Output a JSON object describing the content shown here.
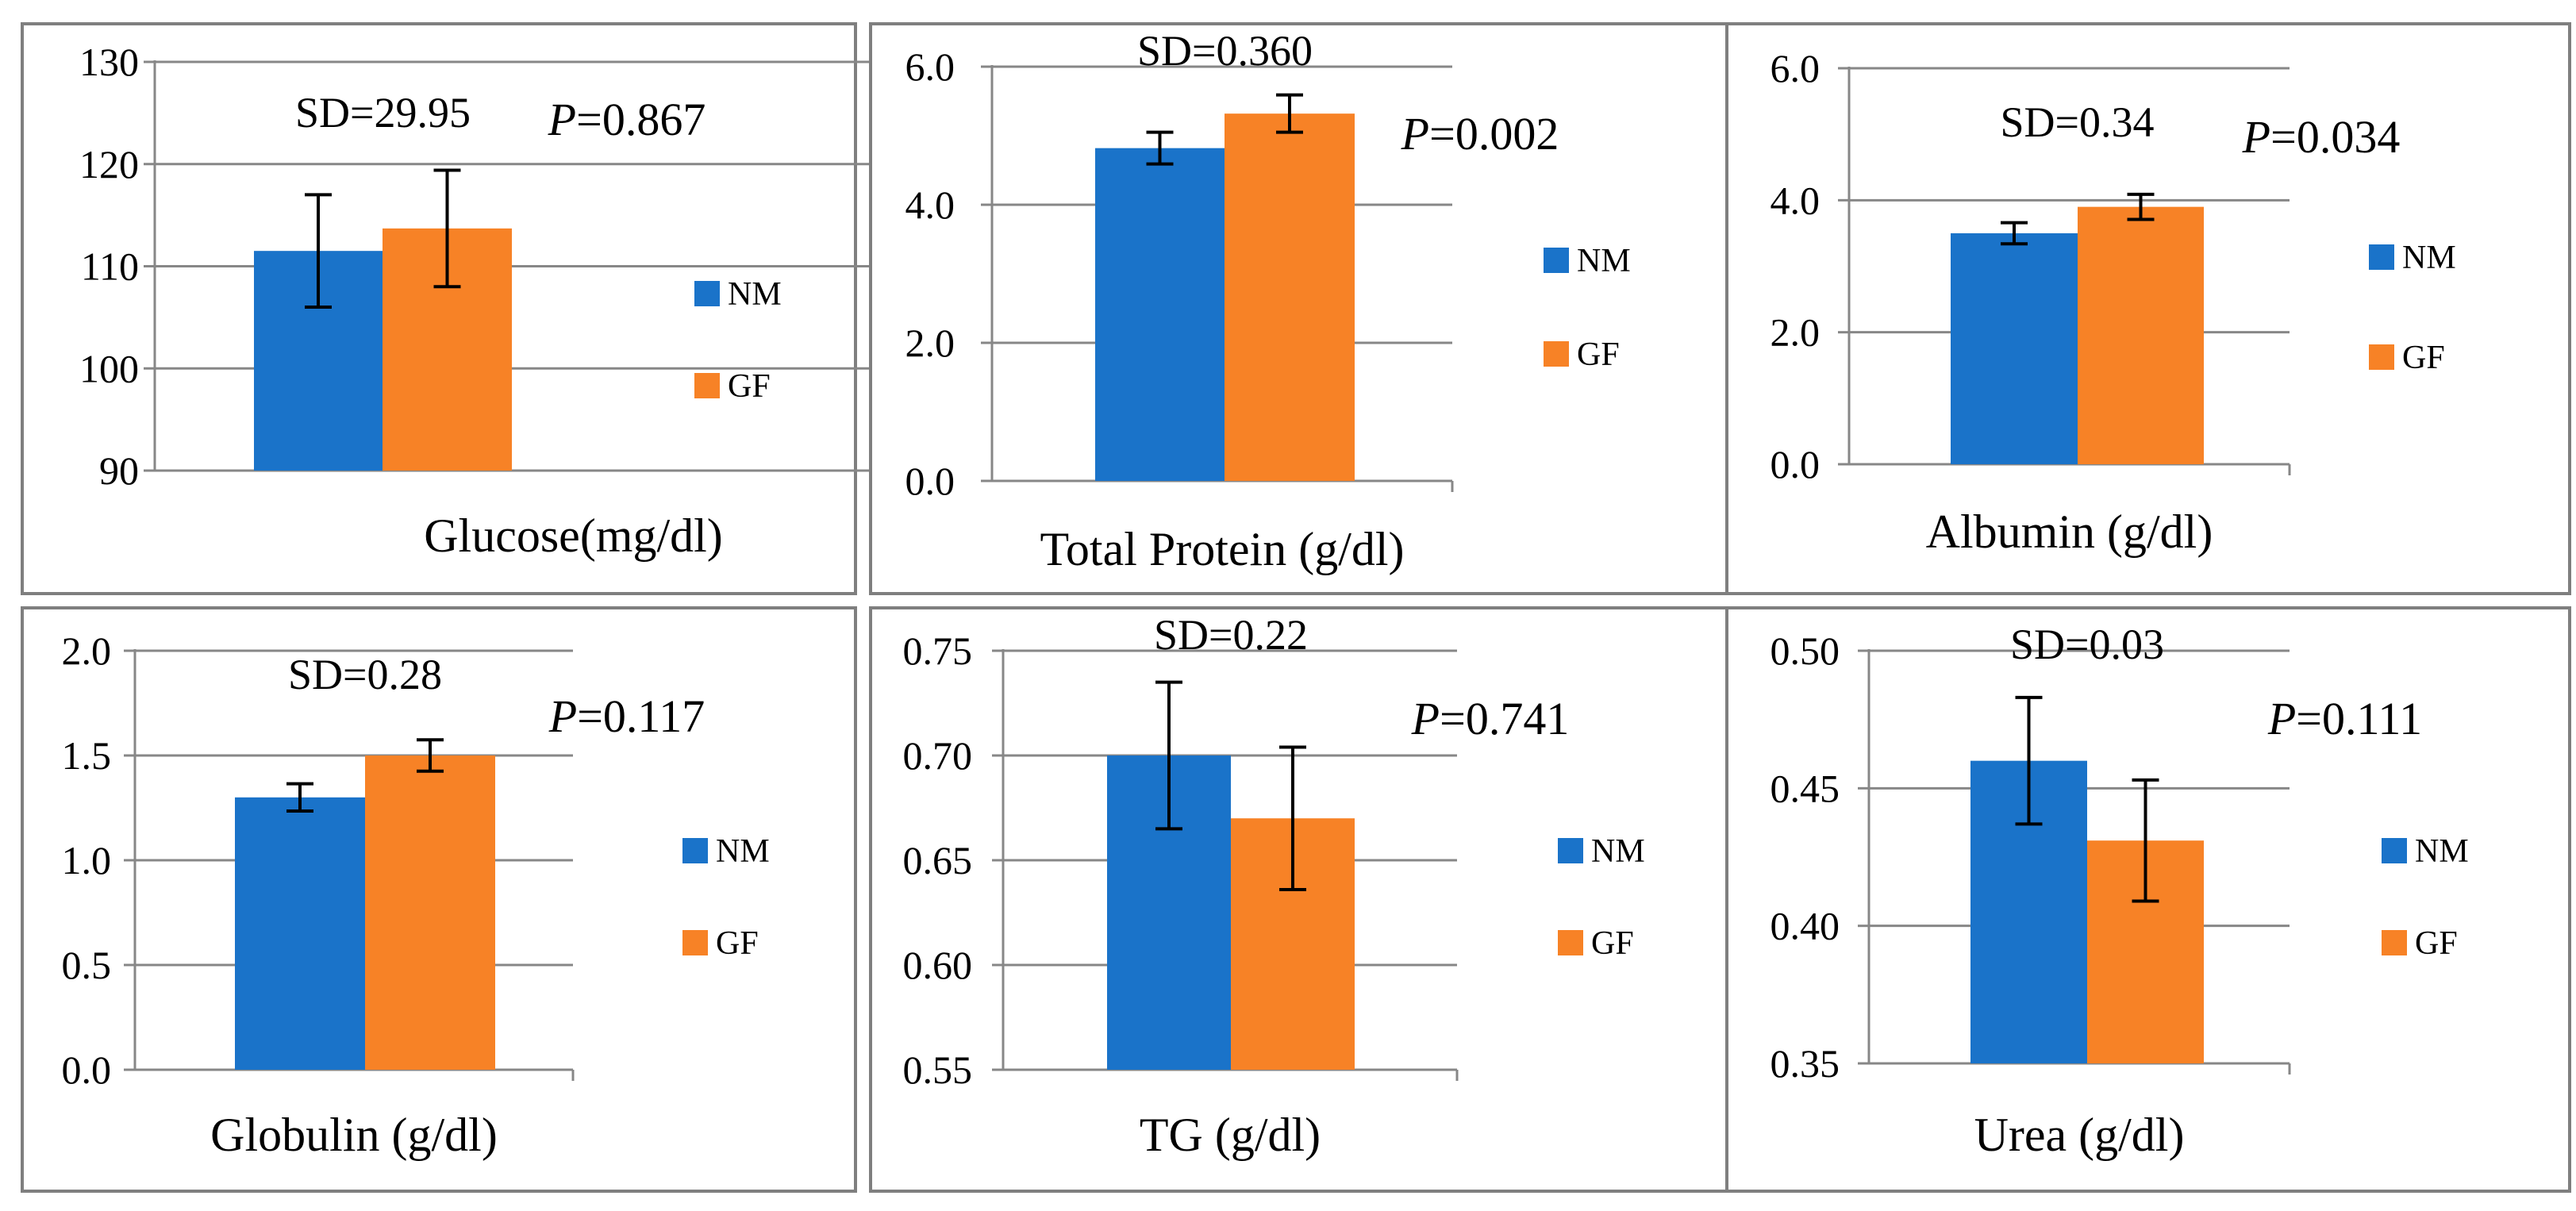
{
  "colors": {
    "NM": "#1a73c9",
    "GF": "#f78226",
    "grid": "#878787",
    "frame": "#7f7f7f"
  },
  "chart_data": [
    {
      "type": "bar",
      "title": "Glucose(mg/dl)",
      "sd_label": "SD=29.95",
      "p_prefix": "P",
      "p_value": "=0.867",
      "ylim": [
        90,
        130
      ],
      "yticks": [
        90,
        100,
        110,
        120,
        130
      ],
      "tick_labels": [
        "90",
        "100",
        "110",
        "120",
        "130"
      ],
      "series": [
        {
          "name": "NM",
          "value": 111.5,
          "error": 5.5
        },
        {
          "name": "GF",
          "value": 113.7,
          "error": 5.7
        }
      ],
      "legend": [
        "NM",
        "GF"
      ]
    },
    {
      "type": "bar",
      "title": "Total Protein (g/dl)",
      "sd_label": "SD=0.360",
      "p_prefix": "P",
      "p_value": "=0.002",
      "ylim": [
        0,
        6
      ],
      "yticks": [
        0,
        2,
        4,
        6
      ],
      "tick_labels": [
        "0.0",
        "2.0",
        "4.0",
        "6.0"
      ],
      "series": [
        {
          "name": "NM",
          "value": 4.82,
          "error": 0.23
        },
        {
          "name": "GF",
          "value": 5.32,
          "error": 0.27
        }
      ],
      "legend": [
        "NM",
        "GF"
      ]
    },
    {
      "type": "bar",
      "title": "Albumin (g/dl)",
      "sd_label": "SD=0.34",
      "p_prefix": "P",
      "p_value": "=0.034",
      "ylim": [
        0,
        6
      ],
      "yticks": [
        0,
        2,
        4,
        6
      ],
      "tick_labels": [
        "0.0",
        "2.0",
        "4.0",
        "6.0"
      ],
      "series": [
        {
          "name": "NM",
          "value": 3.5,
          "error": 0.16
        },
        {
          "name": "GF",
          "value": 3.9,
          "error": 0.19
        }
      ],
      "legend": [
        "NM",
        "GF"
      ]
    },
    {
      "type": "bar",
      "title": "Globulin (g/dl)",
      "sd_label": "SD=0.28",
      "p_prefix": "P",
      "p_value": "=0.117",
      "ylim": [
        0,
        2
      ],
      "yticks": [
        0,
        0.5,
        1,
        1.5,
        2
      ],
      "tick_labels": [
        "0.0",
        "0.5",
        "1.0",
        "1.5",
        "2.0"
      ],
      "series": [
        {
          "name": "NM",
          "value": 1.3,
          "error": 0.065
        },
        {
          "name": "GF",
          "value": 1.5,
          "error": 0.075
        }
      ],
      "legend": [
        "NM",
        "GF"
      ]
    },
    {
      "type": "bar",
      "title": "TG (g/dl)",
      "sd_label": "SD=0.22",
      "p_prefix": "P",
      "p_value": "=0.741",
      "ylim": [
        0.55,
        0.75
      ],
      "yticks": [
        0.55,
        0.6,
        0.65,
        0.7,
        0.75
      ],
      "tick_labels": [
        "0.55",
        "0.60",
        "0.65",
        "0.70",
        "0.75"
      ],
      "series": [
        {
          "name": "NM",
          "value": 0.7,
          "error": 0.035
        },
        {
          "name": "GF",
          "value": 0.67,
          "error": 0.034
        }
      ],
      "legend": [
        "NM",
        "GF"
      ]
    },
    {
      "type": "bar",
      "title": "Urea (g/dl)",
      "sd_label": "SD=0.03",
      "p_prefix": "P",
      "p_value": "=0.111",
      "ylim": [
        0.35,
        0.5
      ],
      "yticks": [
        0.35,
        0.4,
        0.45,
        0.5
      ],
      "tick_labels": [
        "0.35",
        "0.40",
        "0.45",
        "0.50"
      ],
      "series": [
        {
          "name": "NM",
          "value": 0.46,
          "error": 0.023
        },
        {
          "name": "GF",
          "value": 0.431,
          "error": 0.022
        }
      ],
      "legend": [
        "NM",
        "GF"
      ]
    }
  ]
}
